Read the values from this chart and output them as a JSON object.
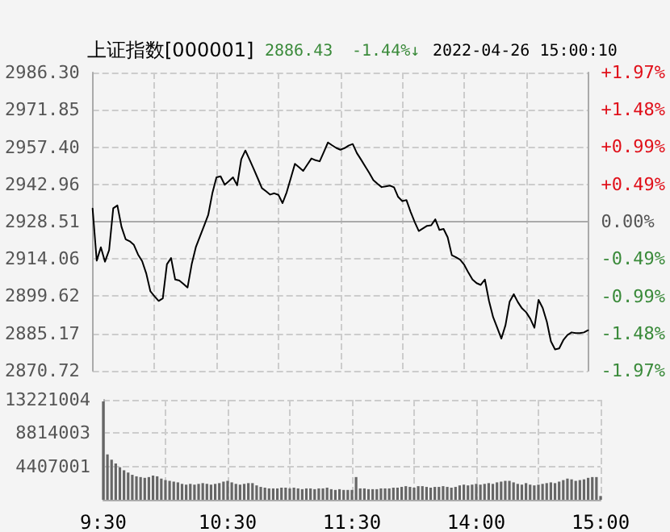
{
  "chart_data": [
    {
      "type": "line",
      "title": "上证指数[000001]",
      "annotations": [
        "2886.43",
        "-1.44%↓",
        "2022-04-26 15:00:10"
      ],
      "categories": [
        null,
        null,
        null,
        null,
        null,
        null,
        null,
        null,
        null,
        null,
        null,
        null,
        null,
        null,
        null,
        null,
        null,
        null,
        null,
        null,
        null,
        null,
        null,
        null,
        null,
        null,
        null,
        null,
        null,
        null,
        null,
        null,
        null,
        null,
        null,
        null,
        null,
        null,
        null,
        null,
        null,
        null,
        null,
        null,
        null,
        null,
        null,
        null,
        null,
        null,
        null,
        null,
        null,
        null,
        null,
        null,
        null,
        null,
        null,
        null,
        null,
        null,
        null,
        null,
        null,
        null,
        null,
        null,
        null,
        null,
        null,
        null,
        null,
        null,
        null,
        null,
        null,
        null,
        null,
        null,
        null,
        null,
        null,
        null,
        null,
        null,
        null,
        null,
        null,
        null,
        null,
        null,
        null,
        null,
        null,
        null,
        null,
        null,
        null,
        null,
        null,
        null,
        null,
        null,
        null,
        null,
        null,
        null,
        null,
        null,
        null,
        null,
        null,
        null,
        null,
        null,
        null,
        null,
        null,
        null,
        null
      ],
      "series": [
        {
          "color": "#000000",
          "values": [
            2933.6,
            2913.4,
            2918.6,
            2913.0,
            2917.5,
            2933.7,
            2934.8,
            2926.5,
            2921.7,
            2920.9,
            2919.5,
            2915.8,
            2913.2,
            2908.4,
            2901.5,
            2899.6,
            2897.8,
            2898.8,
            2912.0,
            2914.4,
            2906.1,
            2905.7,
            2904.4,
            2903.0,
            2912.0,
            2918.6,
            2922.8,
            2926.9,
            2931.1,
            2939.5,
            2945.7,
            2946.1,
            2942.8,
            2944.2,
            2945.7,
            2942.6,
            2952.7,
            2956.1,
            2952.6,
            2949.0,
            2945.3,
            2941.5,
            2940.3,
            2939.0,
            2939.5,
            2938.9,
            2935.7,
            2939.9,
            2945.4,
            2950.9,
            2949.6,
            2948.2,
            2950.6,
            2953.0,
            2952.3,
            2951.9,
            2955.5,
            2959.2,
            2958.1,
            2957.1,
            2956.4,
            2957.0,
            2958.0,
            2958.6,
            2955.1,
            2952.6,
            2950.0,
            2947.4,
            2944.6,
            2943.2,
            2941.9,
            2942.2,
            2942.5,
            2941.8,
            2938.1,
            2936.5,
            2936.9,
            2932.4,
            2928.4,
            2924.9,
            2925.9,
            2926.9,
            2927.1,
            2929.4,
            2925.3,
            2925.7,
            2922.4,
            2915.5,
            2914.7,
            2913.8,
            2911.8,
            2908.8,
            2906.1,
            2904.7,
            2904.0,
            2906.1,
            2897.8,
            2891.5,
            2887.4,
            2883.2,
            2888.4,
            2897.5,
            2900.4,
            2897.3,
            2894.9,
            2893.4,
            2890.9,
            2887.4,
            2898.2,
            2895.1,
            2889.8,
            2882.1,
            2879.0,
            2879.4,
            2882.6,
            2884.6,
            2885.6,
            2885.3,
            2885.3,
            2885.6,
            2886.43
          ]
        }
      ],
      "ylim": [
        2870.72,
        2986.3
      ],
      "yticks": [
        {
          "value": 2870.72,
          "label": "2870.72"
        },
        {
          "value": 2885.17,
          "label": "2885.17"
        },
        {
          "value": 2899.62,
          "label": "2899.62"
        },
        {
          "value": 2914.06,
          "label": "2914.06"
        },
        {
          "value": 2928.51,
          "label": "2928.51"
        },
        {
          "value": 2942.96,
          "label": "2942.96"
        },
        {
          "value": 2957.4,
          "label": "2957.40"
        },
        {
          "value": 2971.85,
          "label": "2971.85"
        },
        {
          "value": 2986.3,
          "label": "2986.30"
        }
      ],
      "y2lim": [
        -1.97,
        1.97
      ],
      "y2ticks": [
        {
          "value": -1.97,
          "label": "-1.97%"
        },
        {
          "value": -1.48,
          "label": "-1.48%"
        },
        {
          "value": -0.99,
          "label": "-0.99%"
        },
        {
          "value": -0.49,
          "label": "-0.49%"
        },
        {
          "value": 0,
          "label": "0.00%"
        },
        {
          "value": 0.49,
          "label": "+0.49%"
        },
        {
          "value": 0.99,
          "label": "+0.99%"
        },
        {
          "value": 1.48,
          "label": "+1.48%"
        },
        {
          "value": 1.97,
          "label": "+1.97%"
        }
      ],
      "grid": true,
      "marker": "none",
      "line_style": "solid"
    },
    {
      "type": "bar",
      "categories": [
        "9:30",
        null,
        null,
        null,
        null,
        null,
        null,
        null,
        null,
        null,
        null,
        null,
        null,
        null,
        null,
        null,
        null,
        null,
        null,
        null,
        null,
        null,
        null,
        null,
        null,
        null,
        null,
        null,
        null,
        null,
        "10:30",
        null,
        null,
        null,
        null,
        null,
        null,
        null,
        null,
        null,
        null,
        null,
        null,
        null,
        null,
        null,
        null,
        null,
        null,
        null,
        null,
        null,
        null,
        null,
        null,
        null,
        null,
        null,
        null,
        null,
        "11:30",
        null,
        null,
        null,
        null,
        null,
        null,
        null,
        null,
        null,
        null,
        null,
        null,
        null,
        null,
        null,
        null,
        null,
        null,
        null,
        null,
        null,
        null,
        null,
        null,
        null,
        null,
        null,
        null,
        null,
        "14:00",
        null,
        null,
        null,
        null,
        null,
        null,
        null,
        null,
        null,
        null,
        null,
        null,
        null,
        null,
        null,
        null,
        null,
        null,
        null,
        null,
        null,
        null,
        null,
        null,
        null,
        null,
        null,
        null,
        null,
        "15:00"
      ],
      "series": [
        {
          "color": "#666666",
          "values": [
            13000000,
            6000000,
            5300000,
            4800000,
            4300000,
            3900000,
            3600000,
            3300000,
            3100000,
            3000000,
            2900000,
            3000000,
            3200000,
            3100000,
            2800000,
            2600000,
            2500000,
            2400000,
            2300000,
            2100000,
            2000000,
            2100000,
            2000000,
            2100000,
            2200000,
            2100000,
            2000000,
            2100000,
            2200000,
            2400000,
            2500000,
            2300000,
            2100000,
            2000000,
            2100000,
            2200000,
            2200000,
            1900000,
            1700000,
            1600000,
            1500000,
            1500000,
            1500000,
            1600000,
            1600000,
            1500000,
            1600000,
            1500000,
            1400000,
            1500000,
            1500000,
            1400000,
            1500000,
            1500000,
            1600000,
            1400000,
            1300000,
            1400000,
            1300000,
            1300000,
            1300000,
            3000000,
            1500000,
            1500000,
            1400000,
            1400000,
            1400000,
            1500000,
            1500000,
            1500000,
            1600000,
            1600000,
            1700000,
            1800000,
            1700000,
            1600000,
            1800000,
            1800000,
            1700000,
            1600000,
            1700000,
            1700000,
            1800000,
            1700000,
            1600000,
            1700000,
            1900000,
            2000000,
            1900000,
            2000000,
            2100000,
            2000000,
            2100000,
            2200000,
            2100000,
            2300000,
            2400000,
            2500000,
            2500000,
            2300000,
            2100000,
            2000000,
            2200000,
            2000000,
            1900000,
            2000000,
            2100000,
            2200000,
            2300000,
            2200000,
            2400000,
            2600000,
            2800000,
            2700000,
            2500000,
            2600000,
            2700000,
            2900000,
            3000000,
            3000000,
            500000
          ]
        }
      ],
      "ylim": [
        0,
        13221004
      ],
      "yticks": [
        4407001,
        8814003,
        13221004
      ],
      "grid": true
    }
  ]
}
